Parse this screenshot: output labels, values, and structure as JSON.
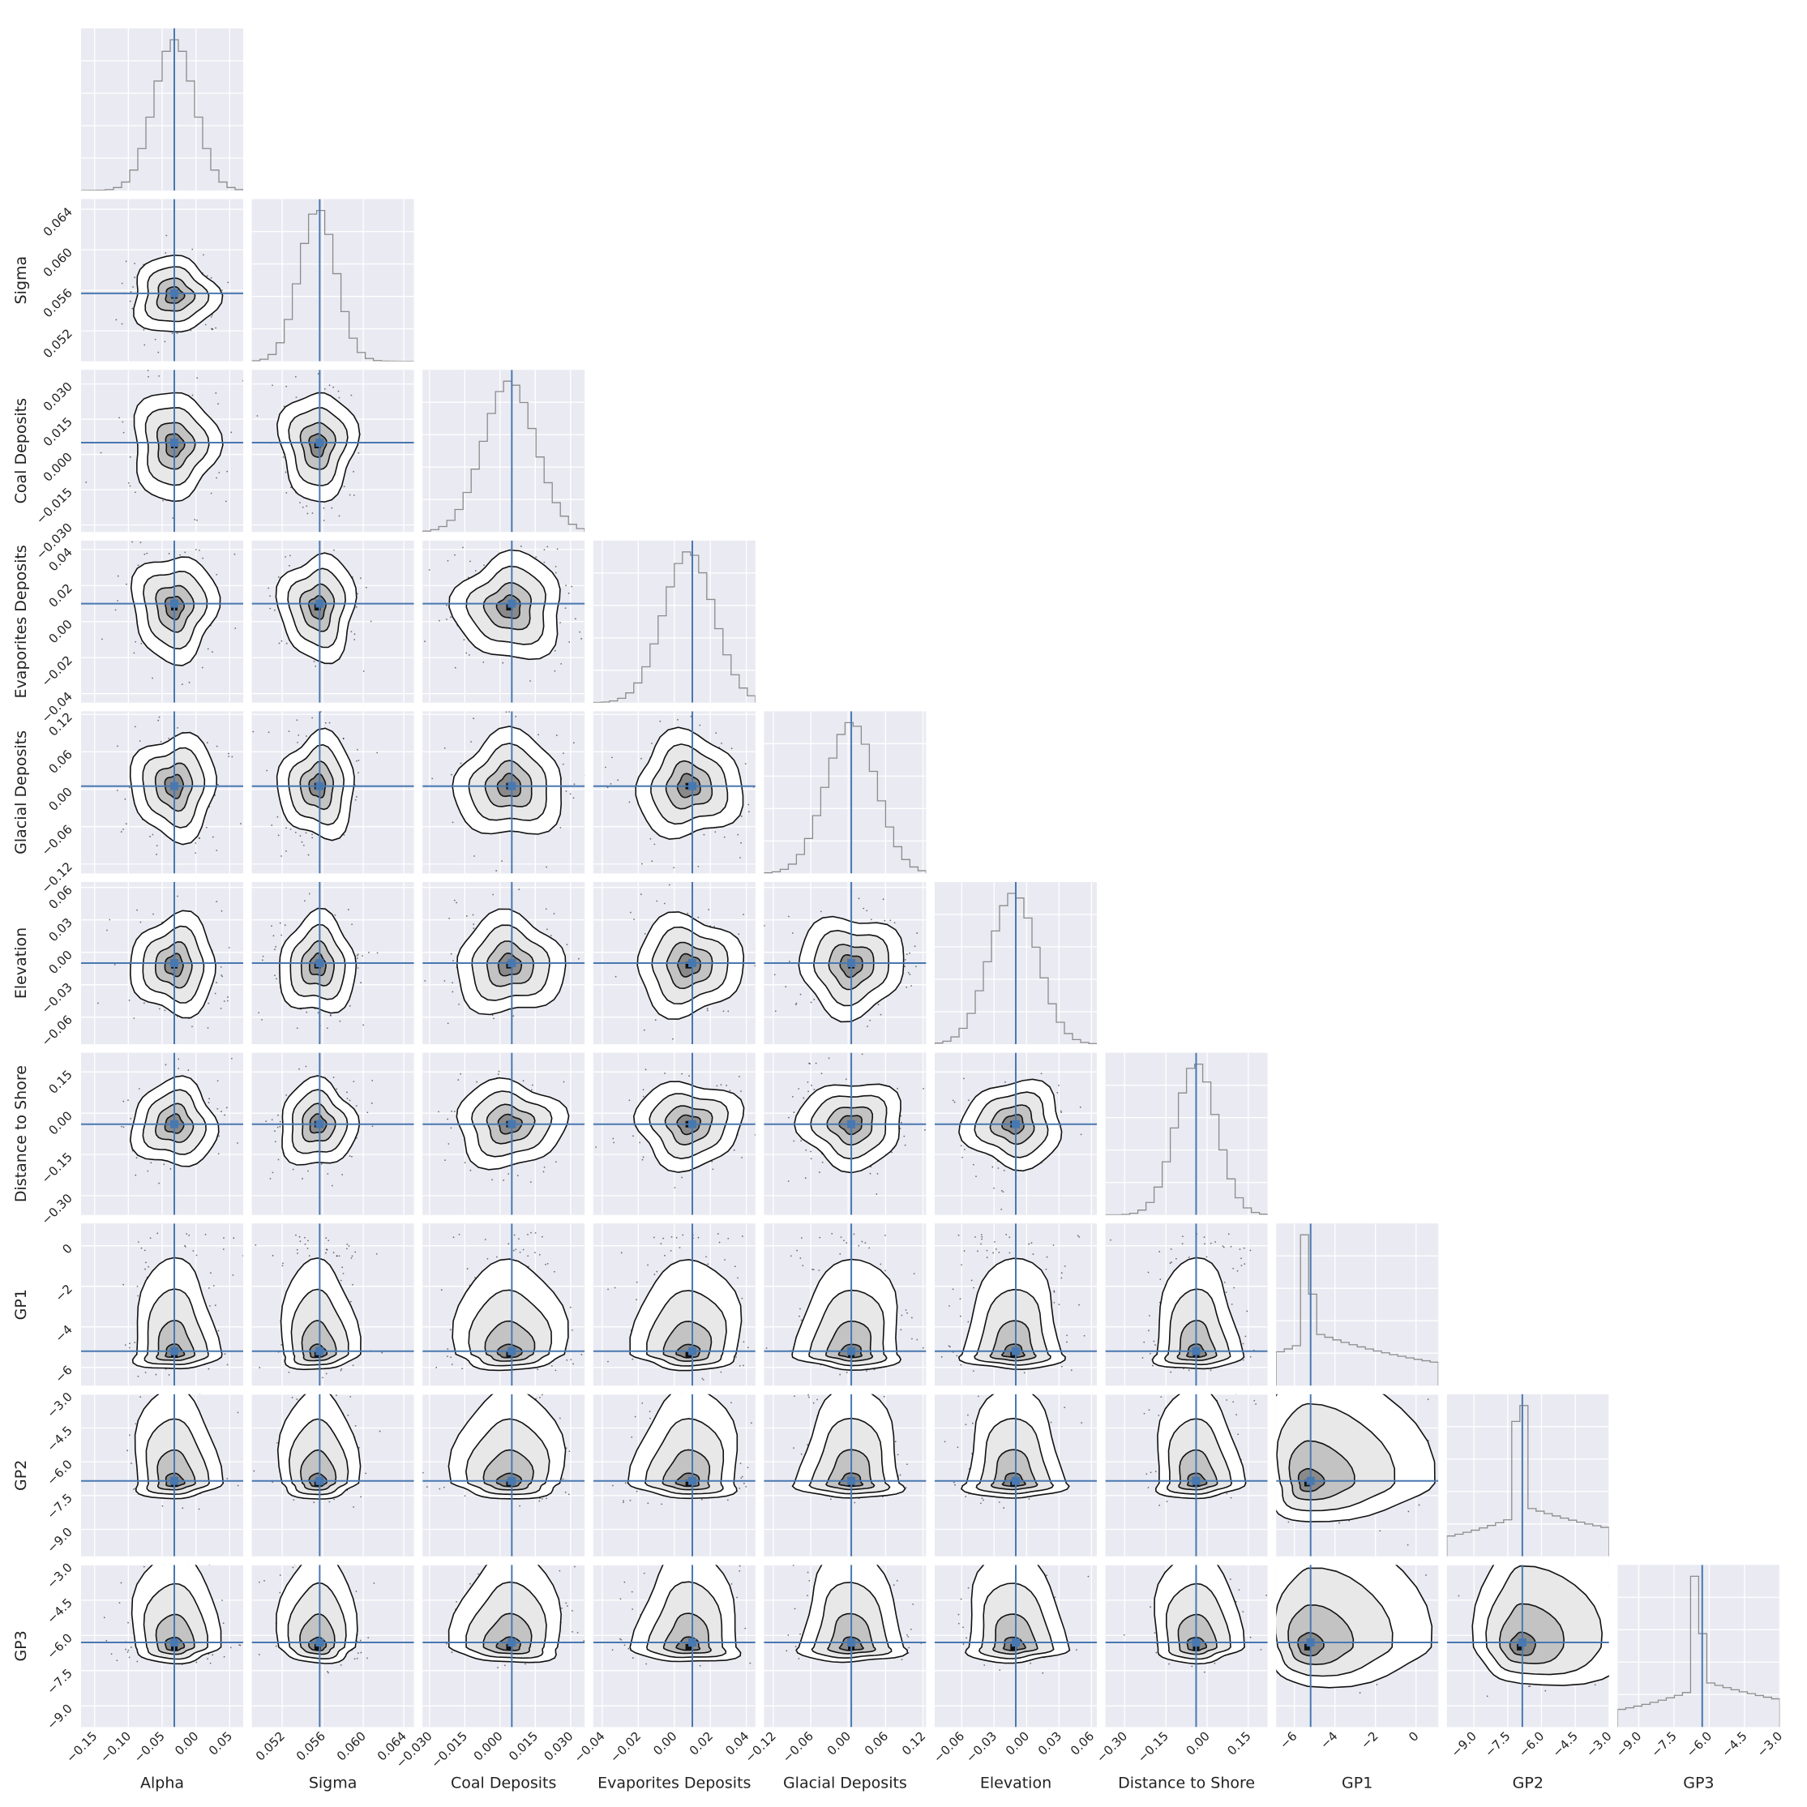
{
  "chart_data": {
    "type": "corner",
    "title": "",
    "parameters": [
      {
        "label": "Alpha",
        "lim": [
          -0.17,
          0.07
        ],
        "truth": -0.032,
        "ticks": [
          -0.15,
          -0.1,
          -0.05,
          0.0,
          0.05
        ],
        "tick_labels": [
          "−0.15",
          "−0.10",
          "−0.05",
          "0.00",
          "0.05"
        ]
      },
      {
        "label": "Sigma",
        "lim": [
          0.049,
          0.065
        ],
        "truth": 0.0557,
        "ticks": [
          0.052,
          0.056,
          0.06,
          0.064
        ],
        "tick_labels": [
          "0.052",
          "0.056",
          "0.060",
          "0.064"
        ]
      },
      {
        "label": "Coal Deposits",
        "lim": [
          -0.033,
          0.036
        ],
        "truth": 0.005,
        "ticks": [
          -0.03,
          -0.015,
          0.0,
          0.015,
          0.03
        ],
        "tick_labels": [
          "−0.030",
          "−0.015",
          "0.000",
          "0.015",
          "0.030"
        ]
      },
      {
        "label": "Evaporites Deposits",
        "lim": [
          -0.045,
          0.045
        ],
        "truth": 0.01,
        "ticks": [
          -0.04,
          -0.02,
          0.0,
          0.02,
          0.04
        ],
        "tick_labels": [
          "−0.04",
          "−0.02",
          "0.00",
          "0.02",
          "0.04"
        ]
      },
      {
        "label": "Glacial Deposits",
        "lim": [
          -0.135,
          0.125
        ],
        "truth": 0.005,
        "ticks": [
          -0.12,
          -0.06,
          0.0,
          0.06,
          0.12
        ],
        "tick_labels": [
          "−0.12",
          "−0.06",
          "0.00",
          "0.06",
          "0.12"
        ]
      },
      {
        "label": "Elevation",
        "lim": [
          -0.085,
          0.065
        ],
        "truth": -0.01,
        "ticks": [
          -0.06,
          -0.03,
          0.0,
          0.03,
          0.06
        ],
        "tick_labels": [
          "−0.06",
          "−0.03",
          "0.00",
          "0.03",
          "0.06"
        ]
      },
      {
        "label": "Distance to Shore",
        "lim": [
          -0.37,
          0.22
        ],
        "truth": -0.04,
        "ticks": [
          -0.3,
          -0.15,
          0.0,
          0.15
        ],
        "tick_labels": [
          "−0.30",
          "−0.15",
          "0.00",
          "0.15"
        ]
      },
      {
        "label": "GP1",
        "lim": [
          -6.9,
          1.1
        ],
        "truth": -5.2,
        "ticks": [
          -6,
          -4,
          -2,
          0
        ],
        "tick_labels": [
          "−6",
          "−4",
          "−2",
          "0"
        ]
      },
      {
        "label": "GP2",
        "lim": [
          -10.2,
          -3.0
        ],
        "truth": -6.85,
        "ticks": [
          -9.0,
          -7.5,
          -6.0,
          -4.5,
          -3.0
        ],
        "tick_labels": [
          "−9.0",
          "−7.5",
          "−6.0",
          "−4.5",
          "−3.0"
        ]
      },
      {
        "label": "GP3",
        "lim": [
          -9.9,
          -3.0
        ],
        "truth": -6.3,
        "ticks": [
          -9.0,
          -7.5,
          -6.0,
          -4.5,
          -3.0
        ],
        "tick_labels": [
          "−9.0",
          "−7.5",
          "−6.0",
          "−4.5",
          "−3.0"
        ]
      }
    ],
    "marginals": [
      {
        "kind": "gaussian",
        "center": -0.032,
        "width": 0.03
      },
      {
        "kind": "gaussian",
        "center": 0.0555,
        "width": 0.0018
      },
      {
        "kind": "gaussian",
        "center": 0.004,
        "width": 0.011
      },
      {
        "kind": "gaussian",
        "center": 0.008,
        "width": 0.014
      },
      {
        "kind": "gaussian",
        "center": 0.005,
        "width": 0.04
      },
      {
        "kind": "gaussian",
        "center": -0.012,
        "width": 0.022
      },
      {
        "kind": "gaussian",
        "center": -0.04,
        "width": 0.075
      },
      {
        "kind": "skewed",
        "center": -5.35,
        "width": 0.2,
        "tail": 0.28
      },
      {
        "kind": "skewed",
        "center": -6.95,
        "width": 0.2,
        "tail": 0.22
      },
      {
        "kind": "skewed",
        "center": -6.5,
        "width": 0.22,
        "tail": 0.26
      }
    ],
    "grid": true,
    "truth_color": "#4878b0",
    "hist_color": "#8c8c8c",
    "panel_background": "#eaeaf2",
    "contour_color": "#111111"
  }
}
